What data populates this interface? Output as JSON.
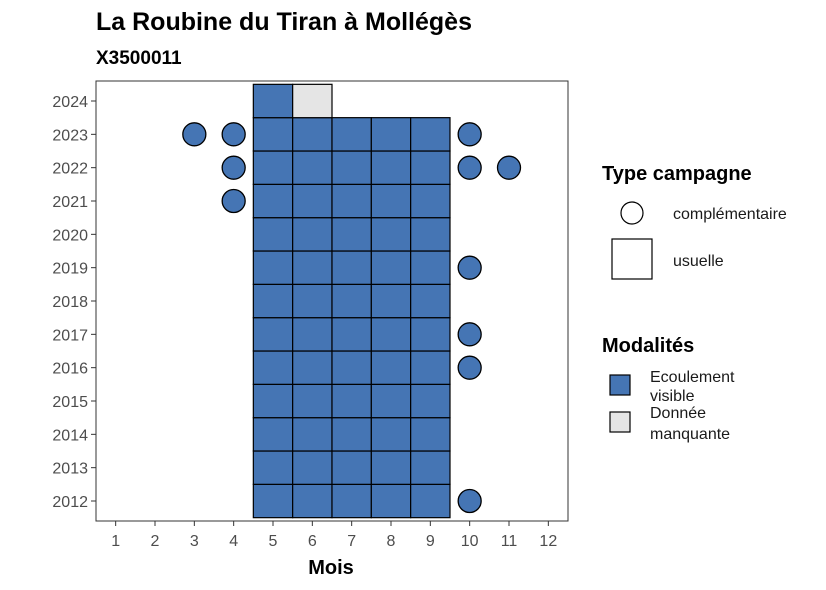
{
  "chart_data": {
    "type": "heatmap",
    "title": "La Roubine du Tiran à Mollégès",
    "subtitle": "X3500011",
    "xlabel": "Mois",
    "ylabel": "",
    "x_ticks": [
      1,
      2,
      3,
      4,
      5,
      6,
      7,
      8,
      9,
      10,
      11,
      12
    ],
    "y_ticks": [
      2012,
      2013,
      2014,
      2015,
      2016,
      2017,
      2018,
      2019,
      2020,
      2021,
      2022,
      2023,
      2024
    ],
    "xlim": [
      0.5,
      12.5
    ],
    "ylim": [
      2011.4,
      2024.6
    ],
    "grid": false,
    "colors": {
      "Ecoulement visible": "#4575b4",
      "Donnée manquante": "#e5e5e5"
    },
    "usuelle": [
      {
        "month": 5,
        "year": 2012,
        "value": "Ecoulement visible"
      },
      {
        "month": 6,
        "year": 2012,
        "value": "Ecoulement visible"
      },
      {
        "month": 7,
        "year": 2012,
        "value": "Ecoulement visible"
      },
      {
        "month": 8,
        "year": 2012,
        "value": "Ecoulement visible"
      },
      {
        "month": 9,
        "year": 2012,
        "value": "Ecoulement visible"
      },
      {
        "month": 5,
        "year": 2013,
        "value": "Ecoulement visible"
      },
      {
        "month": 6,
        "year": 2013,
        "value": "Ecoulement visible"
      },
      {
        "month": 7,
        "year": 2013,
        "value": "Ecoulement visible"
      },
      {
        "month": 8,
        "year": 2013,
        "value": "Ecoulement visible"
      },
      {
        "month": 9,
        "year": 2013,
        "value": "Ecoulement visible"
      },
      {
        "month": 5,
        "year": 2014,
        "value": "Ecoulement visible"
      },
      {
        "month": 6,
        "year": 2014,
        "value": "Ecoulement visible"
      },
      {
        "month": 7,
        "year": 2014,
        "value": "Ecoulement visible"
      },
      {
        "month": 8,
        "year": 2014,
        "value": "Ecoulement visible"
      },
      {
        "month": 9,
        "year": 2014,
        "value": "Ecoulement visible"
      },
      {
        "month": 5,
        "year": 2015,
        "value": "Ecoulement visible"
      },
      {
        "month": 6,
        "year": 2015,
        "value": "Ecoulement visible"
      },
      {
        "month": 7,
        "year": 2015,
        "value": "Ecoulement visible"
      },
      {
        "month": 8,
        "year": 2015,
        "value": "Ecoulement visible"
      },
      {
        "month": 9,
        "year": 2015,
        "value": "Ecoulement visible"
      },
      {
        "month": 5,
        "year": 2016,
        "value": "Ecoulement visible"
      },
      {
        "month": 6,
        "year": 2016,
        "value": "Ecoulement visible"
      },
      {
        "month": 7,
        "year": 2016,
        "value": "Ecoulement visible"
      },
      {
        "month": 8,
        "year": 2016,
        "value": "Ecoulement visible"
      },
      {
        "month": 9,
        "year": 2016,
        "value": "Ecoulement visible"
      },
      {
        "month": 5,
        "year": 2017,
        "value": "Ecoulement visible"
      },
      {
        "month": 6,
        "year": 2017,
        "value": "Ecoulement visible"
      },
      {
        "month": 7,
        "year": 2017,
        "value": "Ecoulement visible"
      },
      {
        "month": 8,
        "year": 2017,
        "value": "Ecoulement visible"
      },
      {
        "month": 9,
        "year": 2017,
        "value": "Ecoulement visible"
      },
      {
        "month": 5,
        "year": 2018,
        "value": "Ecoulement visible"
      },
      {
        "month": 6,
        "year": 2018,
        "value": "Ecoulement visible"
      },
      {
        "month": 7,
        "year": 2018,
        "value": "Ecoulement visible"
      },
      {
        "month": 8,
        "year": 2018,
        "value": "Ecoulement visible"
      },
      {
        "month": 9,
        "year": 2018,
        "value": "Ecoulement visible"
      },
      {
        "month": 5,
        "year": 2019,
        "value": "Ecoulement visible"
      },
      {
        "month": 6,
        "year": 2019,
        "value": "Ecoulement visible"
      },
      {
        "month": 7,
        "year": 2019,
        "value": "Ecoulement visible"
      },
      {
        "month": 8,
        "year": 2019,
        "value": "Ecoulement visible"
      },
      {
        "month": 9,
        "year": 2019,
        "value": "Ecoulement visible"
      },
      {
        "month": 5,
        "year": 2020,
        "value": "Ecoulement visible"
      },
      {
        "month": 6,
        "year": 2020,
        "value": "Ecoulement visible"
      },
      {
        "month": 7,
        "year": 2020,
        "value": "Ecoulement visible"
      },
      {
        "month": 8,
        "year": 2020,
        "value": "Ecoulement visible"
      },
      {
        "month": 9,
        "year": 2020,
        "value": "Ecoulement visible"
      },
      {
        "month": 5,
        "year": 2021,
        "value": "Ecoulement visible"
      },
      {
        "month": 6,
        "year": 2021,
        "value": "Ecoulement visible"
      },
      {
        "month": 7,
        "year": 2021,
        "value": "Ecoulement visible"
      },
      {
        "month": 8,
        "year": 2021,
        "value": "Ecoulement visible"
      },
      {
        "month": 9,
        "year": 2021,
        "value": "Ecoulement visible"
      },
      {
        "month": 5,
        "year": 2022,
        "value": "Ecoulement visible"
      },
      {
        "month": 6,
        "year": 2022,
        "value": "Ecoulement visible"
      },
      {
        "month": 7,
        "year": 2022,
        "value": "Ecoulement visible"
      },
      {
        "month": 8,
        "year": 2022,
        "value": "Ecoulement visible"
      },
      {
        "month": 9,
        "year": 2022,
        "value": "Ecoulement visible"
      },
      {
        "month": 5,
        "year": 2023,
        "value": "Ecoulement visible"
      },
      {
        "month": 6,
        "year": 2023,
        "value": "Ecoulement visible"
      },
      {
        "month": 7,
        "year": 2023,
        "value": "Ecoulement visible"
      },
      {
        "month": 8,
        "year": 2023,
        "value": "Ecoulement visible"
      },
      {
        "month": 9,
        "year": 2023,
        "value": "Ecoulement visible"
      },
      {
        "month": 5,
        "year": 2024,
        "value": "Ecoulement visible"
      },
      {
        "month": 6,
        "year": 2024,
        "value": "Donnée manquante"
      }
    ],
    "complementaire": [
      {
        "month": 3,
        "year": 2023,
        "value": "Ecoulement visible"
      },
      {
        "month": 4,
        "year": 2023,
        "value": "Ecoulement visible"
      },
      {
        "month": 4,
        "year": 2022,
        "value": "Ecoulement visible"
      },
      {
        "month": 4,
        "year": 2021,
        "value": "Ecoulement visible"
      },
      {
        "month": 10,
        "year": 2023,
        "value": "Ecoulement visible"
      },
      {
        "month": 10,
        "year": 2022,
        "value": "Ecoulement visible"
      },
      {
        "month": 11,
        "year": 2022,
        "value": "Ecoulement visible"
      },
      {
        "month": 10,
        "year": 2019,
        "value": "Ecoulement visible"
      },
      {
        "month": 10,
        "year": 2017,
        "value": "Ecoulement visible"
      },
      {
        "month": 10,
        "year": 2016,
        "value": "Ecoulement visible"
      },
      {
        "month": 10,
        "year": 2012,
        "value": "Ecoulement visible"
      }
    ],
    "legend": {
      "placement": "right",
      "shape_title": "Type campagne",
      "shape_items": [
        "complémentaire",
        "usuelle"
      ],
      "fill_title": "Modalités",
      "fill_items": [
        {
          "label_lines": [
            "Ecoulement",
            "visible"
          ],
          "color": "#4575b4"
        },
        {
          "label_lines": [
            "Donnée",
            "manquante"
          ],
          "color": "#e5e5e5"
        }
      ]
    }
  }
}
